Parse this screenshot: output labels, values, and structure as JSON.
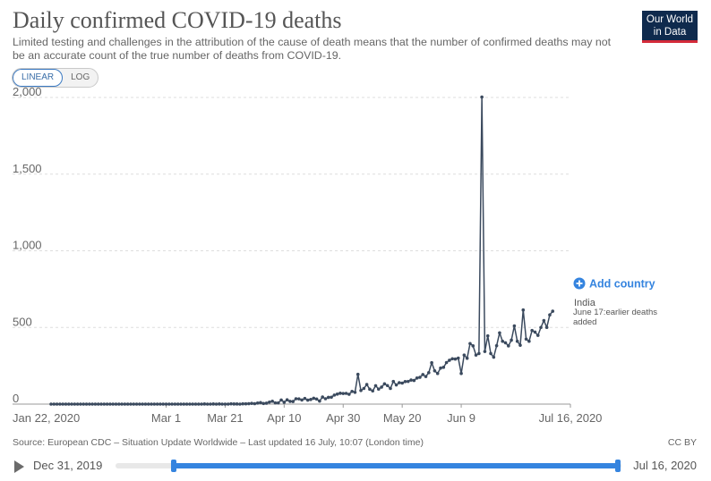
{
  "header": {
    "title": "Daily confirmed COVID-19 deaths",
    "subtitle": "Limited testing and challenges in the attribution of the cause of death means that the number of confirmed deaths may not be an accurate count of the true number of deaths from COVID-19."
  },
  "logo": {
    "line1": "Our World",
    "line2": "in Data"
  },
  "scale_toggle": {
    "linear": "LINEAR",
    "log": "LOG",
    "active": "LINEAR"
  },
  "add_country": "Add country",
  "annotation": {
    "country": "India",
    "note": "June 17:earlier deaths added"
  },
  "footer": {
    "source": "Source: European CDC – Situation Update Worldwide – Last updated 16 July, 10:07 (London time)",
    "license": "CC BY"
  },
  "timeline": {
    "start_label": "Dec 31, 2019",
    "end_label": "Jul 16, 2020",
    "selected_start": "Jan 22, 2020",
    "selected_end": "Jul 16, 2020"
  },
  "colors": {
    "series": "#3b4a5e",
    "accent": "#3584df",
    "logo_bg": "#0f2a4d",
    "logo_bar": "#d42b3a"
  },
  "chart_data": {
    "type": "line",
    "grid": true,
    "x_axis": "date",
    "xlim": [
      "2020-01-22",
      "2020-07-16"
    ],
    "ylim": [
      0,
      2000
    ],
    "yticks": [
      0,
      500,
      1000,
      1500,
      2000
    ],
    "ytick_labels": [
      "0",
      "500",
      "1,000",
      "1,500",
      "2,000"
    ],
    "xticks": [
      "2020-01-22",
      "2020-03-01",
      "2020-03-21",
      "2020-04-10",
      "2020-04-30",
      "2020-05-20",
      "2020-06-09",
      "2020-07-16"
    ],
    "xtick_labels": [
      "Jan 22, 2020",
      "Mar 1",
      "Mar 21",
      "Apr 10",
      "Apr 30",
      "May 20",
      "Jun 9",
      "Jul 16, 2020"
    ],
    "series": [
      {
        "name": "India",
        "start_date": "2020-01-22",
        "values": [
          0,
          0,
          0,
          0,
          0,
          0,
          0,
          0,
          0,
          0,
          0,
          0,
          0,
          0,
          0,
          0,
          0,
          0,
          0,
          0,
          0,
          0,
          0,
          0,
          0,
          0,
          0,
          0,
          0,
          0,
          0,
          0,
          0,
          0,
          0,
          0,
          0,
          0,
          0,
          0,
          0,
          0,
          0,
          0,
          0,
          0,
          0,
          0,
          0,
          0,
          0,
          0,
          1,
          0,
          0,
          1,
          0,
          1,
          0,
          0,
          0,
          2,
          1,
          1,
          0,
          2,
          2,
          3,
          5,
          3,
          7,
          10,
          4,
          6,
          13,
          19,
          8,
          8,
          27,
          12,
          28,
          18,
          17,
          35,
          34,
          27,
          37,
          26,
          30,
          38,
          33,
          20,
          46,
          35,
          44,
          45,
          59,
          65,
          71,
          69,
          70,
          64,
          83,
          77,
          194,
          89,
          102,
          128,
          97,
          86,
          120,
          98,
          111,
          132,
          121,
          102,
          148,
          125,
          140,
          137,
          147,
          148,
          157,
          154,
          170,
          175,
          193,
          180,
          205,
          270,
          217,
          200,
          235,
          240,
          271,
          286,
          296,
          294,
          300,
          200,
          320,
          299,
          395,
          380,
          320,
          330,
          2003,
          343,
          445,
          330,
          306,
          381,
          465,
          410,
          400,
          380,
          417,
          510,
          410,
          384,
          614,
          424,
          410,
          480,
          470,
          448,
          500,
          545,
          500,
          582,
          606
        ]
      }
    ]
  }
}
